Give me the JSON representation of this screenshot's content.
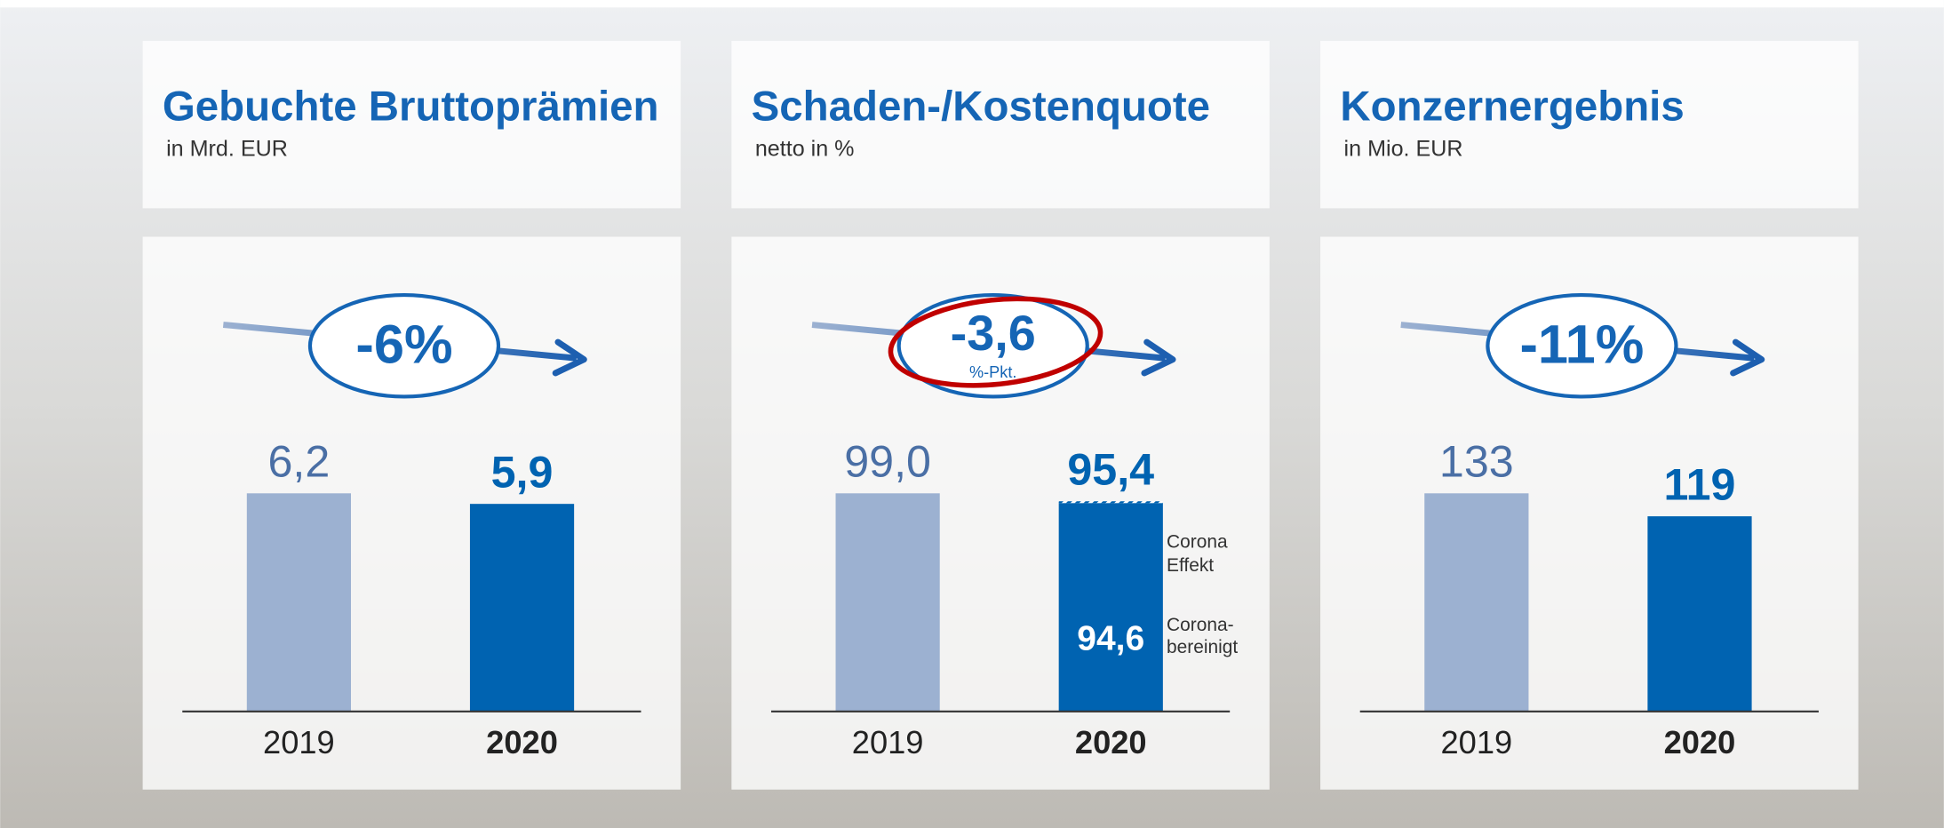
{
  "chart_data": [
    {
      "type": "bar",
      "title": "Gebuchte Bruttoprämien",
      "subtitle": "in Mrd. EUR",
      "categories": [
        "2019",
        "2020"
      ],
      "values": [
        6.2,
        5.9
      ],
      "value_labels": [
        "6,2",
        "5,9"
      ],
      "colors": [
        "#9cb1d1",
        "#0063b1"
      ],
      "change": "-6%"
    },
    {
      "type": "bar",
      "title": "Schaden-/Kostenquote",
      "subtitle": "netto in %",
      "categories": [
        "2019",
        "2020"
      ],
      "values": [
        99.0,
        95.4
      ],
      "value_labels": [
        "99,0",
        "95,4"
      ],
      "colors": [
        "#9cb1d1",
        "#0063b1"
      ],
      "change": "-3,6",
      "change_unit": "%-Pkt.",
      "adjusted_value": 94.6,
      "adjusted_label": "94,6",
      "adjusted_note": [
        "Corona-",
        "bereinigt"
      ],
      "effect_note": [
        "Corona",
        "Effekt"
      ]
    },
    {
      "type": "bar",
      "title": "Konzernergebnis",
      "subtitle": "in Mio. EUR",
      "categories": [
        "2019",
        "2020"
      ],
      "values": [
        133,
        119
      ],
      "colors": [
        "#9cb1d1",
        "#0063b1"
      ],
      "change": "-11%"
    }
  ]
}
